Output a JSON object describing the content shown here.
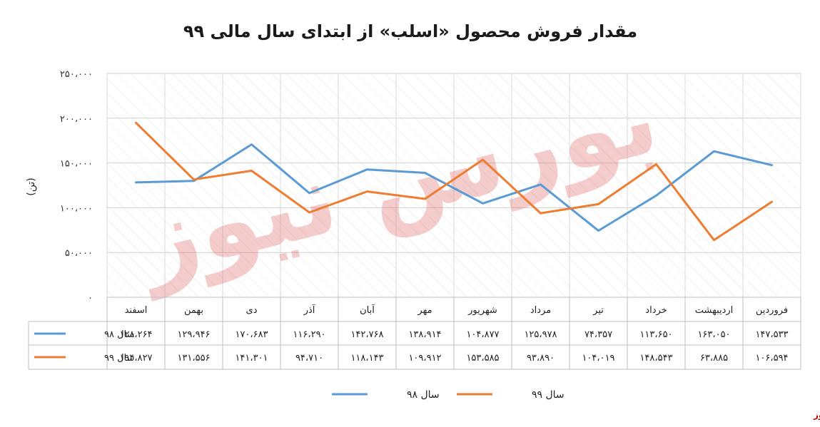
{
  "chart_data": {
    "type": "line",
    "title": "مقدار فروش محصول «اسلب» از ابتدای سال مالی ۹۹",
    "ylabel": "(تن)",
    "ylim": [
      0,
      250000
    ],
    "yticks": [
      "۰",
      "۵۰،۰۰۰",
      "۱۰۰،۰۰۰",
      "۱۵۰،۰۰۰",
      "۲۰۰،۰۰۰",
      "۲۵۰،۰۰۰"
    ],
    "categories": [
      "فروردین",
      "اردیبهشت",
      "خرداد",
      "تیر",
      "مرداد",
      "شهریور",
      "مهر",
      "آبان",
      "آذر",
      "دی",
      "بهمن",
      "اسفند"
    ],
    "series": [
      {
        "name": "سال ۹۸",
        "color": "#5b9bd5",
        "values": [
          147533,
          163050,
          113650,
          74357,
          125978,
          104877,
          138914,
          142768,
          116290,
          170683,
          129946,
          128264
        ],
        "labels": [
          "۱۴۷،۵۳۳",
          "۱۶۳،۰۵۰",
          "۱۱۳،۶۵۰",
          "۷۴،۳۵۷",
          "۱۲۵،۹۷۸",
          "۱۰۴،۸۷۷",
          "۱۳۸،۹۱۴",
          "۱۴۲،۷۶۸",
          "۱۱۶،۲۹۰",
          "۱۷۰،۶۸۳",
          "۱۲۹،۹۴۶",
          "۱۲۸،۲۶۴"
        ]
      },
      {
        "name": "سال ۹۹",
        "color": "#ed7d31",
        "values": [
          106594,
          63885,
          148543,
          104019,
          93890,
          153585,
          109912,
          118143,
          94710,
          141301,
          131556,
          194827
        ],
        "labels": [
          "۱۰۶،۵۹۴",
          "۶۳،۸۸۵",
          "۱۴۸،۵۴۳",
          "۱۰۴،۰۱۹",
          "۹۳،۸۹۰",
          "۱۵۳،۵۸۵",
          "۱۰۹،۹۱۲",
          "۱۱۸،۱۴۳",
          "۹۴،۷۱۰",
          "۱۴۱،۳۰۱",
          "۱۳۱،۵۵۶",
          "۱۹۴،۸۲۷"
        ]
      }
    ],
    "grid": true,
    "legend": "bottom"
  },
  "watermark": "بورس نیوز",
  "brand": "بورس نیوز"
}
